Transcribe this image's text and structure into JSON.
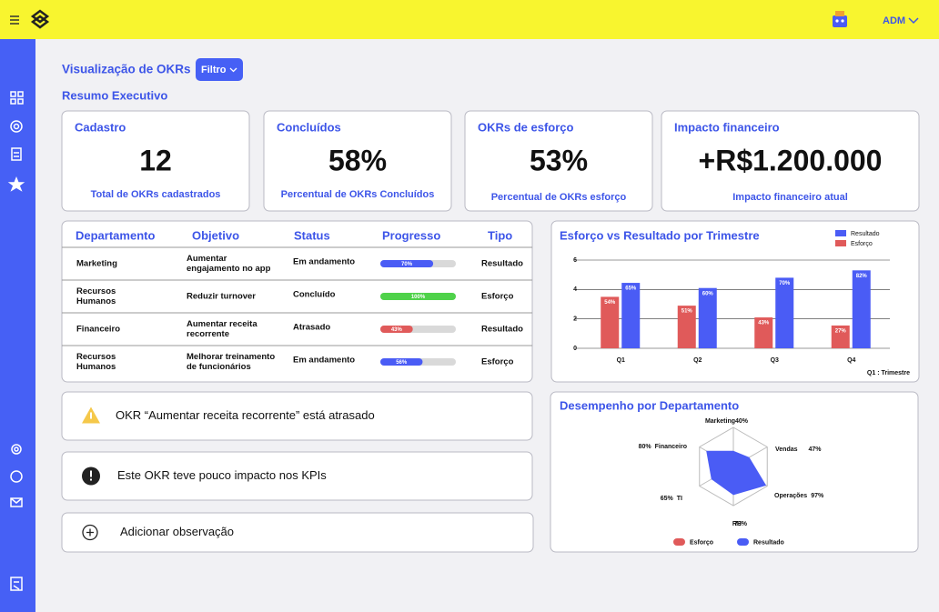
{
  "header": {
    "user": "ADM"
  },
  "page": {
    "title": "Visualização de OKRs",
    "filter": "Filtro",
    "section": "Resumo Executivo"
  },
  "cards": [
    {
      "title": "Cadastro",
      "value": "12",
      "caption": "Total de OKRs cadastrados"
    },
    {
      "title": "Concluídos",
      "value": "58%",
      "caption": "Percentual de OKRs Concluídos"
    },
    {
      "title": "OKRs de esforço",
      "value": "53%",
      "caption": "Percentual de OKRs esforço"
    },
    {
      "title": "Impacto financeiro",
      "value": "+R$1.200.000",
      "caption": "Impacto financeiro atual"
    }
  ],
  "table": {
    "columns": [
      "Departamento",
      "Objetivo",
      "Status",
      "Progresso",
      "Tipo"
    ],
    "rows": [
      {
        "department": [
          "Marketing"
        ],
        "objective": [
          "Aumentar",
          "engajamento no app"
        ],
        "status": "Em andamento",
        "progress": 70,
        "progress_label": "70%",
        "progress_color": "#4a5cf5",
        "type": "Resultado"
      },
      {
        "department": [
          "Recursos",
          "Humanos"
        ],
        "objective": [
          "Reduzir turnover"
        ],
        "status": "Concluído",
        "progress": 100,
        "progress_label": "100%",
        "progress_color": "#4fd24a",
        "type": "Esforço"
      },
      {
        "department": [
          "Financeiro"
        ],
        "objective": [
          "Aumentar receita",
          "recorrente"
        ],
        "status": "Atrasado",
        "progress": 43,
        "progress_label": "43%",
        "progress_color": "#e05a5a",
        "type": "Resultado"
      },
      {
        "department": [
          "Recursos",
          "Humanos"
        ],
        "objective": [
          "Melhorar treinamento",
          "de funcionários"
        ],
        "status": "Em andamento",
        "progress": 56,
        "progress_label": "56%",
        "progress_color": "#4a5cf5",
        "type": "Esforço"
      }
    ]
  },
  "alerts": [
    {
      "text": "OKR “Aumentar receita recorrente” está atrasado"
    },
    {
      "text": "Este  OKR teve pouco impacto nos KPIs"
    },
    {
      "text": "Adicionar observação"
    }
  ],
  "chart_data": [
    {
      "type": "bar",
      "title": "Esforço vs Resultado por Trimestre",
      "categories": [
        "Q1",
        "Q2",
        "Q3",
        "Q4"
      ],
      "x_label": "Q1 : Trimestre",
      "series": [
        {
          "name": "Esforço",
          "color": "#e05a5a",
          "values": [
            3.5,
            2.9,
            2.1,
            1.55
          ],
          "annotations": [
            "54%",
            "51%",
            "43%",
            "27%"
          ]
        },
        {
          "name": "Resultado",
          "color": "#4a5cf5",
          "values": [
            4.45,
            4.1,
            4.8,
            5.3
          ],
          "annotations": [
            "65%",
            "60%",
            "70%",
            "82%"
          ]
        }
      ],
      "ylim": [
        0,
        6
      ],
      "yticks": [
        0,
        2,
        4,
        6
      ],
      "grid": true,
      "legend": "top-right"
    },
    {
      "type": "radar",
      "title": "Desempenho por Departamento",
      "categories": [
        "Marketing",
        "Vendas",
        "Operações",
        "RH",
        "TI",
        "Financeiro"
      ],
      "series": [
        {
          "name": "Esforço",
          "color": "#e05a5a",
          "values": null
        },
        {
          "name": "Resultado",
          "color": "#4a5cf5",
          "values": [
            40,
            47,
            97,
            73,
            65,
            80
          ],
          "value_labels": [
            "40%",
            "47%",
            "97%",
            "73%",
            "65%",
            "80%"
          ]
        }
      ],
      "legend": "bottom"
    }
  ]
}
